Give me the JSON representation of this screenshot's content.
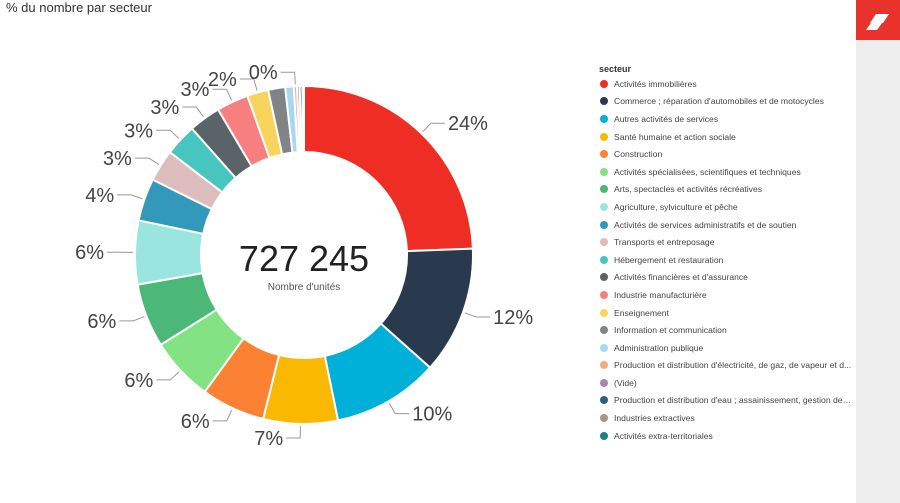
{
  "header": {
    "title": "% du nombre par secteur"
  },
  "logo": {
    "icon": "brand-logo-icon",
    "color": "#e8322c"
  },
  "chart_data": {
    "type": "pie",
    "variant": "donut",
    "title": "% du nombre par secteur",
    "center_value": "727 245",
    "center_label": "Nombre d'unités",
    "legend_title": "secteur",
    "legend_position": "right",
    "slices": [
      {
        "name": "Activités immobilières",
        "value": 24,
        "label": "24%",
        "color": "#ee2d24"
      },
      {
        "name": "Commerce ; réparation d'automobiles et de motocycles",
        "value": 12,
        "label": "12%",
        "color": "#2a3a4e"
      },
      {
        "name": "Autres activités de services",
        "value": 10,
        "label": "10%",
        "color": "#00b0d8"
      },
      {
        "name": "Santé humaine et action sociale",
        "value": 7,
        "label": "7%",
        "color": "#fbb800"
      },
      {
        "name": "Construction",
        "value": 6,
        "label": "6%",
        "color": "#fb8232"
      },
      {
        "name": "Activités spécialisées, scientifiques et techniques",
        "value": 6,
        "label": "6%",
        "color": "#83e283"
      },
      {
        "name": "Arts, spectacles et activités récréatives",
        "value": 6,
        "label": "6%",
        "color": "#4cb878"
      },
      {
        "name": "Agriculture, sylviculture et pêche",
        "value": 6,
        "label": "6%",
        "color": "#9ae5e0"
      },
      {
        "name": "Activités de services administratifs et de soutien",
        "value": 4,
        "label": "4%",
        "color": "#3399bb"
      },
      {
        "name": "Transports et entreposage",
        "value": 3,
        "label": "3%",
        "color": "#dcbcbc"
      },
      {
        "name": "Hébergement et restauration",
        "value": 3,
        "label": "3%",
        "color": "#47c6bf"
      },
      {
        "name": "Activités financières et d'assurance",
        "value": 3,
        "label": "3%",
        "color": "#5a6468"
      },
      {
        "name": "Industrie manufacturière",
        "value": 3,
        "label": "3%",
        "color": "#f87f80"
      },
      {
        "name": "Enseignement",
        "value": 2,
        "label": "2%",
        "color": "#f8d45c"
      },
      {
        "name": "Information et communication",
        "value": 1.6,
        "label": "",
        "color": "#7f8587"
      },
      {
        "name": "Administration publique",
        "value": 0.8,
        "label": "",
        "color": "#a6d8ee"
      },
      {
        "name": "Production et distribution d'électricité, de gaz, de vapeur et d...",
        "value": 0.3,
        "label": "0%",
        "color": "#f5a982"
      },
      {
        "name": "(Vide)",
        "value": 0.25,
        "label": "",
        "color": "#a388a8"
      },
      {
        "name": "Production et distribution d'eau ; assainissement, gestion des...",
        "value": 0.25,
        "label": "",
        "color": "#2d6080"
      },
      {
        "name": "Industries extractives",
        "value": 0.1,
        "label": "",
        "color": "#a89684"
      },
      {
        "name": "Activités extra-territoriales",
        "value": 0.05,
        "label": "",
        "color": "#17857f"
      }
    ]
  }
}
